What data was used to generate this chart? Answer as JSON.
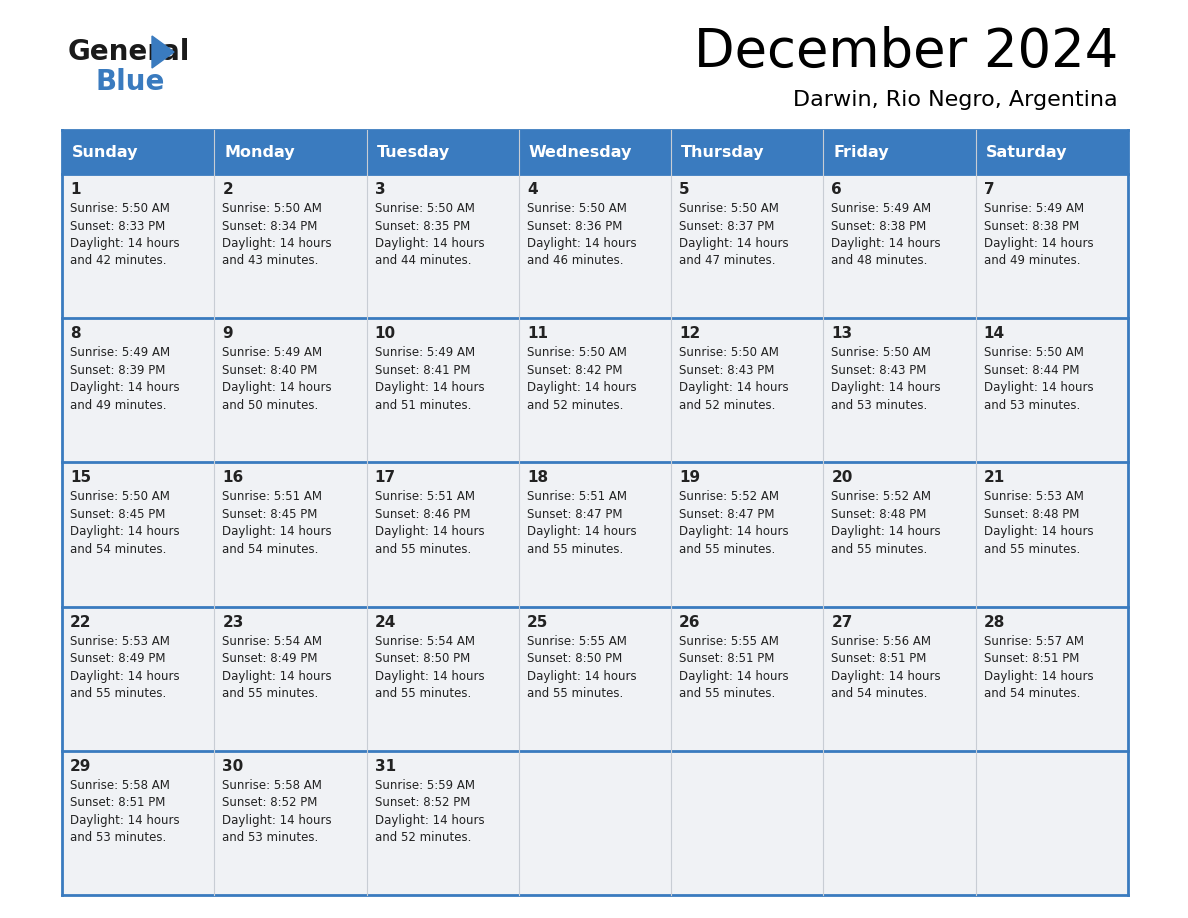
{
  "title": "December 2024",
  "subtitle": "Darwin, Rio Negro, Argentina",
  "header_bg": "#3a7bbf",
  "header_text_color": "#ffffff",
  "cell_bg": "#f0f2f5",
  "border_color": "#3a7bbf",
  "separator_color": "#3a7bbf",
  "text_color": "#222222",
  "day_names": [
    "Sunday",
    "Monday",
    "Tuesday",
    "Wednesday",
    "Thursday",
    "Friday",
    "Saturday"
  ],
  "days": [
    {
      "day": 1,
      "col": 0,
      "row": 0,
      "sunrise": "5:50 AM",
      "sunset": "8:33 PM",
      "daylight_hrs": 14,
      "daylight_min": 42
    },
    {
      "day": 2,
      "col": 1,
      "row": 0,
      "sunrise": "5:50 AM",
      "sunset": "8:34 PM",
      "daylight_hrs": 14,
      "daylight_min": 43
    },
    {
      "day": 3,
      "col": 2,
      "row": 0,
      "sunrise": "5:50 AM",
      "sunset": "8:35 PM",
      "daylight_hrs": 14,
      "daylight_min": 44
    },
    {
      "day": 4,
      "col": 3,
      "row": 0,
      "sunrise": "5:50 AM",
      "sunset": "8:36 PM",
      "daylight_hrs": 14,
      "daylight_min": 46
    },
    {
      "day": 5,
      "col": 4,
      "row": 0,
      "sunrise": "5:50 AM",
      "sunset": "8:37 PM",
      "daylight_hrs": 14,
      "daylight_min": 47
    },
    {
      "day": 6,
      "col": 5,
      "row": 0,
      "sunrise": "5:49 AM",
      "sunset": "8:38 PM",
      "daylight_hrs": 14,
      "daylight_min": 48
    },
    {
      "day": 7,
      "col": 6,
      "row": 0,
      "sunrise": "5:49 AM",
      "sunset": "8:38 PM",
      "daylight_hrs": 14,
      "daylight_min": 49
    },
    {
      "day": 8,
      "col": 0,
      "row": 1,
      "sunrise": "5:49 AM",
      "sunset": "8:39 PM",
      "daylight_hrs": 14,
      "daylight_min": 49
    },
    {
      "day": 9,
      "col": 1,
      "row": 1,
      "sunrise": "5:49 AM",
      "sunset": "8:40 PM",
      "daylight_hrs": 14,
      "daylight_min": 50
    },
    {
      "day": 10,
      "col": 2,
      "row": 1,
      "sunrise": "5:49 AM",
      "sunset": "8:41 PM",
      "daylight_hrs": 14,
      "daylight_min": 51
    },
    {
      "day": 11,
      "col": 3,
      "row": 1,
      "sunrise": "5:50 AM",
      "sunset": "8:42 PM",
      "daylight_hrs": 14,
      "daylight_min": 52
    },
    {
      "day": 12,
      "col": 4,
      "row": 1,
      "sunrise": "5:50 AM",
      "sunset": "8:43 PM",
      "daylight_hrs": 14,
      "daylight_min": 52
    },
    {
      "day": 13,
      "col": 5,
      "row": 1,
      "sunrise": "5:50 AM",
      "sunset": "8:43 PM",
      "daylight_hrs": 14,
      "daylight_min": 53
    },
    {
      "day": 14,
      "col": 6,
      "row": 1,
      "sunrise": "5:50 AM",
      "sunset": "8:44 PM",
      "daylight_hrs": 14,
      "daylight_min": 53
    },
    {
      "day": 15,
      "col": 0,
      "row": 2,
      "sunrise": "5:50 AM",
      "sunset": "8:45 PM",
      "daylight_hrs": 14,
      "daylight_min": 54
    },
    {
      "day": 16,
      "col": 1,
      "row": 2,
      "sunrise": "5:51 AM",
      "sunset": "8:45 PM",
      "daylight_hrs": 14,
      "daylight_min": 54
    },
    {
      "day": 17,
      "col": 2,
      "row": 2,
      "sunrise": "5:51 AM",
      "sunset": "8:46 PM",
      "daylight_hrs": 14,
      "daylight_min": 55
    },
    {
      "day": 18,
      "col": 3,
      "row": 2,
      "sunrise": "5:51 AM",
      "sunset": "8:47 PM",
      "daylight_hrs": 14,
      "daylight_min": 55
    },
    {
      "day": 19,
      "col": 4,
      "row": 2,
      "sunrise": "5:52 AM",
      "sunset": "8:47 PM",
      "daylight_hrs": 14,
      "daylight_min": 55
    },
    {
      "day": 20,
      "col": 5,
      "row": 2,
      "sunrise": "5:52 AM",
      "sunset": "8:48 PM",
      "daylight_hrs": 14,
      "daylight_min": 55
    },
    {
      "day": 21,
      "col": 6,
      "row": 2,
      "sunrise": "5:53 AM",
      "sunset": "8:48 PM",
      "daylight_hrs": 14,
      "daylight_min": 55
    },
    {
      "day": 22,
      "col": 0,
      "row": 3,
      "sunrise": "5:53 AM",
      "sunset": "8:49 PM",
      "daylight_hrs": 14,
      "daylight_min": 55
    },
    {
      "day": 23,
      "col": 1,
      "row": 3,
      "sunrise": "5:54 AM",
      "sunset": "8:49 PM",
      "daylight_hrs": 14,
      "daylight_min": 55
    },
    {
      "day": 24,
      "col": 2,
      "row": 3,
      "sunrise": "5:54 AM",
      "sunset": "8:50 PM",
      "daylight_hrs": 14,
      "daylight_min": 55
    },
    {
      "day": 25,
      "col": 3,
      "row": 3,
      "sunrise": "5:55 AM",
      "sunset": "8:50 PM",
      "daylight_hrs": 14,
      "daylight_min": 55
    },
    {
      "day": 26,
      "col": 4,
      "row": 3,
      "sunrise": "5:55 AM",
      "sunset": "8:51 PM",
      "daylight_hrs": 14,
      "daylight_min": 55
    },
    {
      "day": 27,
      "col": 5,
      "row": 3,
      "sunrise": "5:56 AM",
      "sunset": "8:51 PM",
      "daylight_hrs": 14,
      "daylight_min": 54
    },
    {
      "day": 28,
      "col": 6,
      "row": 3,
      "sunrise": "5:57 AM",
      "sunset": "8:51 PM",
      "daylight_hrs": 14,
      "daylight_min": 54
    },
    {
      "day": 29,
      "col": 0,
      "row": 4,
      "sunrise": "5:58 AM",
      "sunset": "8:51 PM",
      "daylight_hrs": 14,
      "daylight_min": 53
    },
    {
      "day": 30,
      "col": 1,
      "row": 4,
      "sunrise": "5:58 AM",
      "sunset": "8:52 PM",
      "daylight_hrs": 14,
      "daylight_min": 53
    },
    {
      "day": 31,
      "col": 2,
      "row": 4,
      "sunrise": "5:59 AM",
      "sunset": "8:52 PM",
      "daylight_hrs": 14,
      "daylight_min": 52
    }
  ],
  "num_rows": 5,
  "num_cols": 7
}
